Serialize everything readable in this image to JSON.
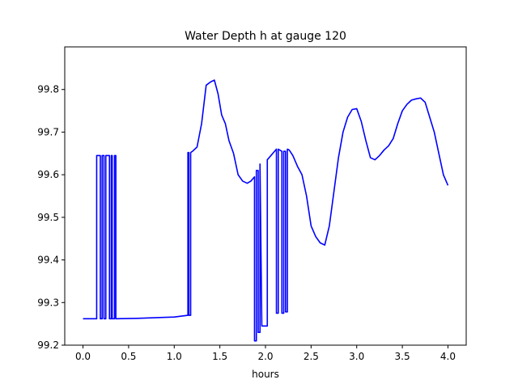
{
  "chart_data": {
    "type": "line",
    "title": "Water Depth h at gauge 120",
    "xlabel": "hours",
    "ylabel": "",
    "xlim": [
      -0.2,
      4.2
    ],
    "ylim": [
      99.2,
      99.9
    ],
    "xticks": [
      0.0,
      0.5,
      1.0,
      1.5,
      2.0,
      2.5,
      3.0,
      3.5,
      4.0
    ],
    "xtick_labels": [
      "0.0",
      "0.5",
      "1.0",
      "1.5",
      "2.0",
      "2.5",
      "3.0",
      "3.5",
      "4.0"
    ],
    "yticks": [
      99.2,
      99.3,
      99.4,
      99.5,
      99.6,
      99.7,
      99.8
    ],
    "ytick_labels": [
      "99.2",
      "99.3",
      "99.4",
      "99.5",
      "99.6",
      "99.7",
      "99.8"
    ],
    "grid": false,
    "series": [
      {
        "color": "#0000ff",
        "x": [
          0.0,
          0.15,
          0.15,
          0.19,
          0.19,
          0.21,
          0.21,
          0.23,
          0.23,
          0.25,
          0.25,
          0.29,
          0.29,
          0.31,
          0.31,
          0.32,
          0.32,
          0.345,
          0.345,
          0.36,
          0.36,
          0.6,
          1.0,
          1.15,
          1.15,
          1.16,
          1.16,
          1.18,
          1.18,
          1.2,
          1.25,
          1.3,
          1.35,
          1.4,
          1.44,
          1.48,
          1.52,
          1.56,
          1.6,
          1.65,
          1.7,
          1.75,
          1.8,
          1.84,
          1.86,
          1.88,
          1.88,
          1.9,
          1.9,
          1.92,
          1.92,
          1.94,
          1.94,
          1.96,
          2.0,
          2.02,
          2.02,
          2.1,
          2.12,
          2.12,
          2.14,
          2.14,
          2.18,
          2.18,
          2.2,
          2.2,
          2.22,
          2.22,
          2.24,
          2.24,
          2.26,
          2.3,
          2.35,
          2.4,
          2.45,
          2.5,
          2.55,
          2.6,
          2.65,
          2.7,
          2.75,
          2.8,
          2.85,
          2.9,
          2.95,
          3.0,
          3.05,
          3.1,
          3.15,
          3.2,
          3.25,
          3.3,
          3.35,
          3.4,
          3.45,
          3.5,
          3.55,
          3.6,
          3.65,
          3.7,
          3.75,
          3.8,
          3.85,
          3.9,
          3.95,
          4.0
        ],
        "y": [
          99.262,
          99.262,
          99.645,
          99.645,
          99.262,
          99.262,
          99.645,
          99.645,
          99.262,
          99.262,
          99.645,
          99.645,
          99.262,
          99.262,
          99.645,
          99.645,
          99.262,
          99.262,
          99.645,
          99.645,
          99.262,
          99.263,
          99.266,
          99.27,
          99.652,
          99.652,
          99.27,
          99.27,
          99.652,
          99.655,
          99.665,
          99.72,
          99.81,
          99.818,
          99.822,
          99.79,
          99.74,
          99.72,
          99.68,
          99.65,
          99.6,
          99.585,
          99.58,
          99.585,
          99.59,
          99.595,
          99.21,
          99.21,
          99.61,
          99.61,
          99.23,
          99.23,
          99.625,
          99.245,
          99.245,
          99.245,
          99.635,
          99.655,
          99.66,
          99.275,
          99.275,
          99.66,
          99.655,
          99.275,
          99.275,
          99.655,
          99.655,
          99.278,
          99.278,
          99.66,
          99.658,
          99.645,
          99.62,
          99.6,
          99.55,
          99.48,
          99.455,
          99.44,
          99.435,
          99.48,
          99.56,
          99.64,
          99.7,
          99.735,
          99.753,
          99.755,
          99.725,
          99.68,
          99.64,
          99.635,
          99.645,
          99.658,
          99.668,
          99.685,
          99.72,
          99.75,
          99.765,
          99.775,
          99.778,
          99.78,
          99.77,
          99.735,
          99.7,
          99.65,
          99.6,
          99.575
        ]
      }
    ]
  }
}
